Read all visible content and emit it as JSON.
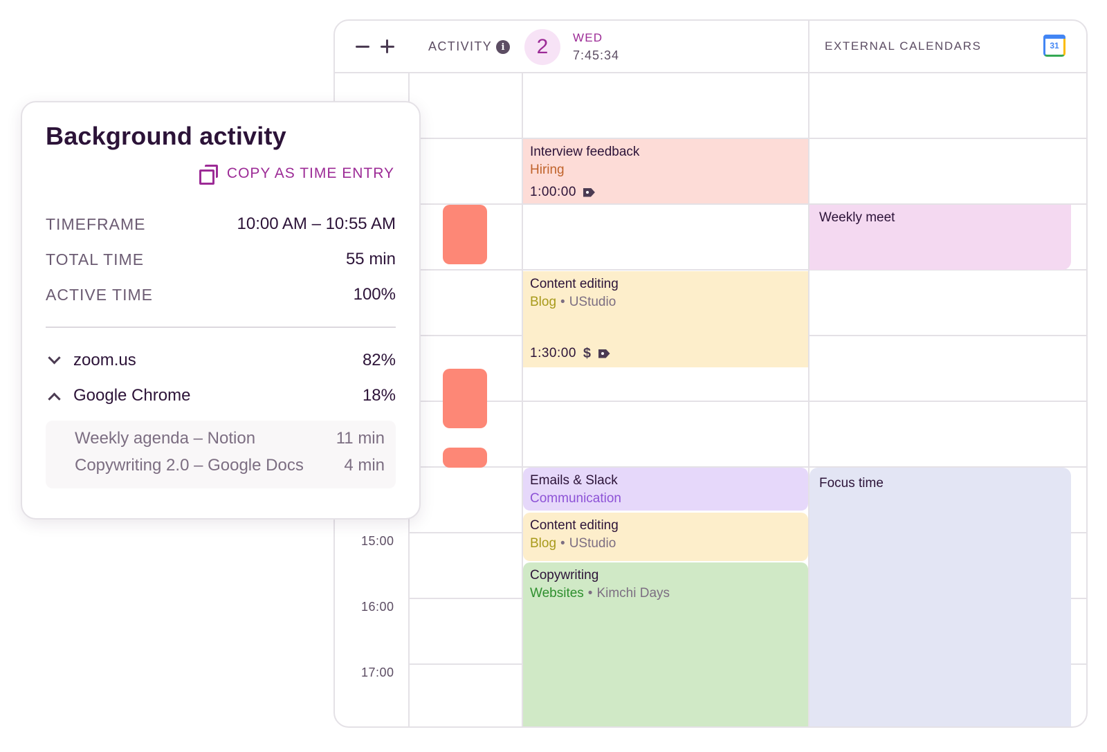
{
  "calendar": {
    "header": {
      "zoom_out_label": "zoom out",
      "zoom_in_label": "zoom in",
      "activity_label": "ACTIVITY",
      "info_glyph": "i",
      "day_number": "2",
      "day_name": "WED",
      "clock": "7:45:34",
      "external_label": "EXTERNAL CALENDARS",
      "gcal_number": "31"
    },
    "time_labels": [
      "15:00",
      "16:00",
      "17:00"
    ],
    "events": {
      "interview": {
        "title": "Interview feedback",
        "project": "Hiring",
        "project_color": "#c0632b",
        "duration": "1:00:00",
        "bg": "#fddcd7"
      },
      "content1": {
        "title": "Content editing",
        "project": "Blog",
        "client": "UStudio",
        "project_color": "#a89a1b",
        "duration": "1:30:00",
        "bg": "#fdeecb"
      },
      "emails": {
        "title": "Emails & Slack",
        "project": "Communication",
        "project_color": "#8d52d6",
        "bg": "#e6d8fa"
      },
      "content2": {
        "title": "Content editing",
        "project": "Blog",
        "client": "UStudio",
        "project_color": "#a89a1b",
        "bg": "#fdeecb"
      },
      "copywriting": {
        "title": "Copywriting",
        "project": "Websites",
        "client": "Kimchi Days",
        "project_color": "#2e8f2e",
        "bg": "#d0e9c6"
      }
    },
    "external_events": {
      "weekly_meet": {
        "title": "Weekly meet",
        "bg": "#f4d9f1"
      },
      "focus_time": {
        "title": "Focus time",
        "bg": "#e3e5f4"
      }
    },
    "separator": "•",
    "dollar_glyph": "$"
  },
  "card": {
    "title": "Background activity",
    "copy_label": "COPY AS TIME ENTRY",
    "stats": [
      {
        "label": "TIMEFRAME",
        "value": "10:00 AM – 10:55 AM"
      },
      {
        "label": "TOTAL TIME",
        "value": "55 min"
      },
      {
        "label": "ACTIVE TIME",
        "value": "100%"
      }
    ],
    "apps": [
      {
        "name": "zoom.us",
        "percent": "82%",
        "expanded": false
      },
      {
        "name": "Google Chrome",
        "percent": "18%",
        "expanded": true
      }
    ],
    "chrome_items": [
      {
        "title": "Weekly agenda – Notion",
        "time": "11 min"
      },
      {
        "title": "Copywriting 2.0 – Google Docs",
        "time": "4 min"
      }
    ]
  },
  "colors": {
    "accent": "#9c2b96",
    "activity_block": "#fd8776",
    "text_dark": "#2c1338",
    "text_muted": "#6b5b72"
  }
}
